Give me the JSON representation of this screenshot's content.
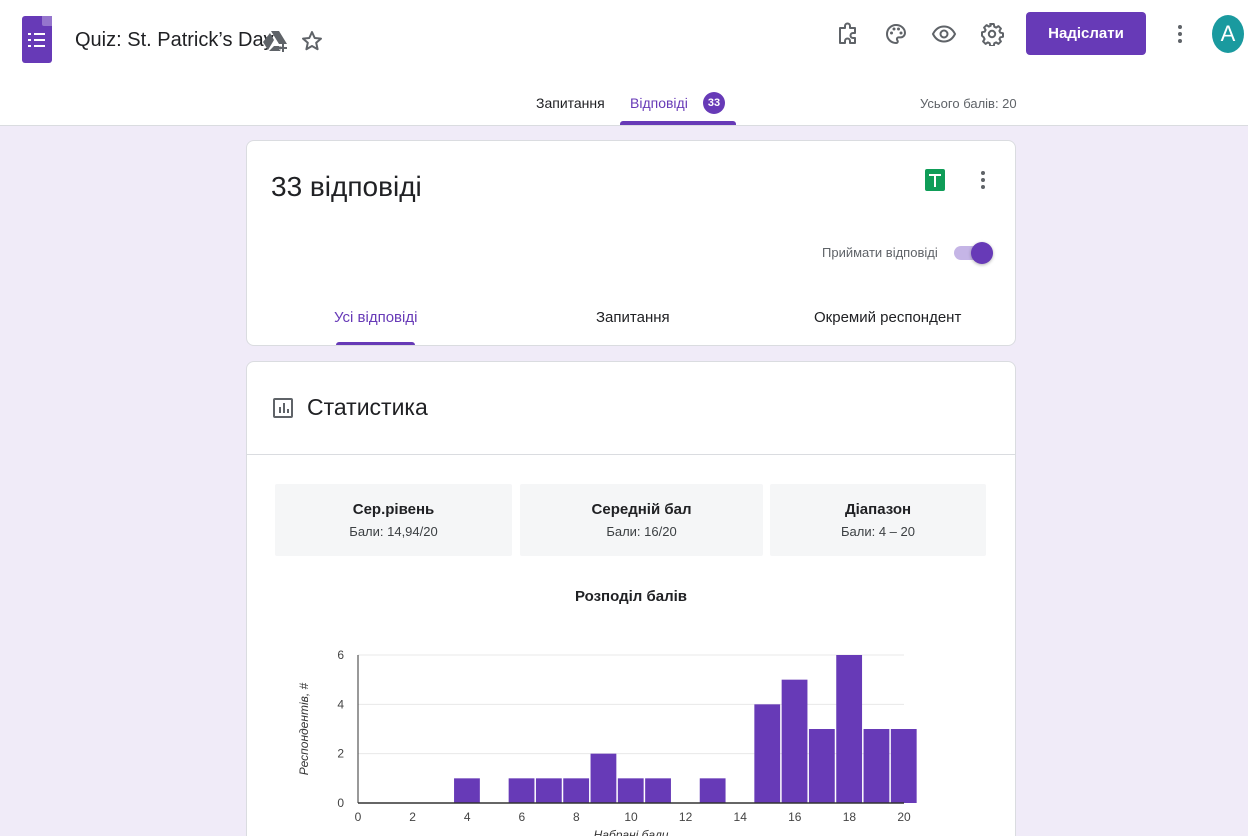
{
  "header": {
    "title": "Quiz: St. Patrick’s Day",
    "send_label": "Надіслати",
    "avatar_letter": "A",
    "icons": [
      "drive-add-icon",
      "star-icon",
      "addon-icon",
      "palette-icon",
      "preview-eye-icon",
      "settings-gear-icon",
      "more-vert-icon"
    ]
  },
  "tabs": {
    "questions": "Запитання",
    "responses": "Відповіді",
    "responses_badge": "33",
    "total_points": "Усього балів: 20"
  },
  "summary": {
    "count_title": "33 відповіді",
    "accept_label": "Приймати відповіді",
    "accepting": true,
    "subtabs": [
      "Усі відповіді",
      "Запитання",
      "Окремий респондент"
    ]
  },
  "stats": {
    "title": "Статистика",
    "boxes": [
      {
        "heading": "Сер.рівень",
        "value": "Бали: 14,94/20"
      },
      {
        "heading": "Середній бал",
        "value": "Бали: 16/20"
      },
      {
        "heading": "Діапазон",
        "value": "Бали: 4 – 20"
      }
    ]
  },
  "colors": {
    "accent": "#673ab7",
    "background": "#f0ebf8",
    "bar": "#673ab7"
  },
  "chart_data": {
    "type": "bar",
    "title": "Розподіл балів",
    "xlabel": "Набрані бали",
    "ylabel": "Респондентів, #",
    "x": [
      4,
      6,
      7,
      8,
      9,
      10,
      11,
      13,
      15,
      16,
      17,
      18,
      19,
      20
    ],
    "values": [
      1,
      1,
      1,
      1,
      2,
      1,
      1,
      1,
      4,
      5,
      3,
      6,
      3,
      3
    ],
    "xlim": [
      0,
      20
    ],
    "ylim": [
      0,
      6
    ],
    "xticks": [
      0,
      2,
      4,
      6,
      8,
      10,
      12,
      14,
      16,
      18,
      20
    ],
    "yticks": [
      0,
      2,
      4,
      6
    ],
    "grid": true
  }
}
